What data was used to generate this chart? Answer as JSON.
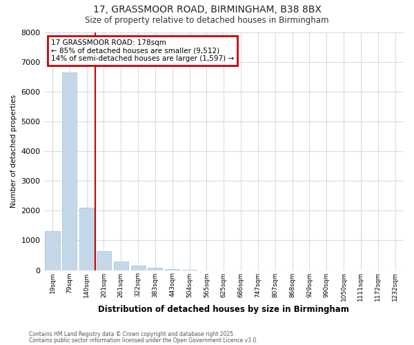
{
  "title1": "17, GRASSMOOR ROAD, BIRMINGHAM, B38 8BX",
  "title2": "Size of property relative to detached houses in Birmingham",
  "xlabel": "Distribution of detached houses by size in Birmingham",
  "ylabel": "Number of detached properties",
  "categories": [
    "19sqm",
    "79sqm",
    "140sqm",
    "201sqm",
    "261sqm",
    "322sqm",
    "383sqm",
    "443sqm",
    "504sqm",
    "565sqm",
    "625sqm",
    "686sqm",
    "747sqm",
    "807sqm",
    "868sqm",
    "929sqm",
    "990sqm",
    "1050sqm",
    "1111sqm",
    "1172sqm",
    "1232sqm"
  ],
  "values": [
    1320,
    6650,
    2100,
    650,
    300,
    150,
    80,
    40,
    10,
    0,
    0,
    0,
    0,
    0,
    0,
    0,
    0,
    0,
    0,
    0,
    0
  ],
  "bar_color": "#c5d8ea",
  "bar_edge_color": "#9fbdd4",
  "highlight_index": 2,
  "highlight_color": "#cc0000",
  "vline_x": 2.5,
  "ylim": [
    0,
    8000
  ],
  "yticks": [
    0,
    1000,
    2000,
    3000,
    4000,
    5000,
    6000,
    7000,
    8000
  ],
  "annotation_title": "17 GRASSMOOR ROAD: 178sqm",
  "annotation_line1": "← 85% of detached houses are smaller (9,512)",
  "annotation_line2": "14% of semi-detached houses are larger (1,597) →",
  "annotation_box_color": "#cc0000",
  "bg_color": "#ffffff",
  "plot_bg_color": "#ffffff",
  "grid_color": "#d0dde8",
  "footer1": "Contains HM Land Registry data © Crown copyright and database right 2025.",
  "footer2": "Contains public sector information licensed under the Open Government Licence v3.0."
}
